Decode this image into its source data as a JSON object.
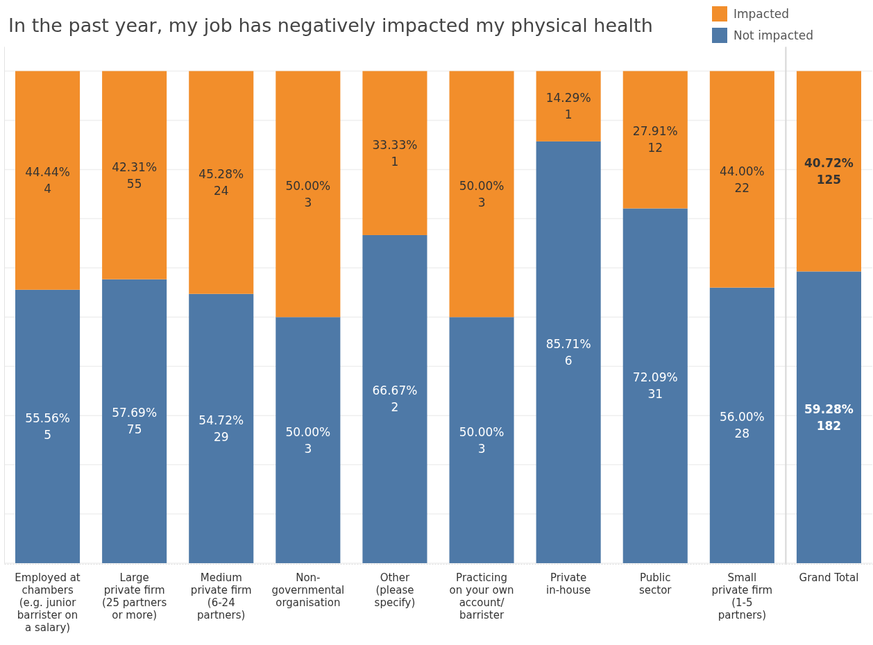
{
  "chart_data": [
    {
      "type": "bar",
      "title": "In the past year, my job has negatively impacted my physical health",
      "categories": [
        "Employed at chambers (e.g. junior barrister on a salary)",
        "Large private firm (25 partners or more)",
        "Medium private firm (6-24 partners)",
        "Non-governmental organisation",
        "Other (please specify)",
        "Practicing on your own account/barrister",
        "Private in-house",
        "Public sector",
        "Small private firm (1-5 partners)"
      ],
      "series": [
        {
          "name": "Not impacted",
          "color": "#4e79a7",
          "values": [
            55.56,
            57.69,
            54.72,
            50.0,
            66.67,
            50.0,
            85.71,
            72.09,
            56.0
          ],
          "value_labels": [
            "55.56%\n5",
            "57.69%\n75",
            "54.72%\n29",
            "50.00%\n3",
            "66.67%\n2",
            "50.00%\n3",
            "85.71%\n6",
            "72.09%\n31",
            "56.00%\n28"
          ]
        },
        {
          "name": "Impacted",
          "color": "#f28e2b",
          "values": [
            44.44,
            42.31,
            45.28,
            50.0,
            33.33,
            50.0,
            14.29,
            27.91,
            44.0
          ],
          "value_labels": [
            "44.44%\n4",
            "42.31%\n55",
            "45.28%\n24",
            "50.00%\n3",
            "33.33%\n1",
            "50.00%\n3",
            "14.29%\n1",
            "27.91%\n12",
            "44.00%\n22"
          ]
        }
      ],
      "stacked": true,
      "ylim": [
        0,
        105
      ],
      "yticks": [
        {
          "value": 0,
          "label": null
        },
        {
          "value": 10,
          "label": null
        },
        {
          "value": 20,
          "label": null
        },
        {
          "value": 30,
          "label": null
        },
        {
          "value": 40,
          "label": null
        },
        {
          "value": 50,
          "label": null
        },
        {
          "value": 60,
          "label": null
        },
        {
          "value": 70,
          "label": null
        },
        {
          "value": 80,
          "label": null
        },
        {
          "value": 90,
          "label": null
        },
        {
          "value": 100,
          "label": null
        }
      ],
      "grid": "y",
      "legend": "top right",
      "tick_labels": "x"
    },
    {
      "type": "bar",
      "categories": [
        "Grand Total"
      ],
      "series": [
        {
          "color": "#4e79a7",
          "values": [
            59.28
          ],
          "value_labels": [
            "59.28%\n182"
          ]
        },
        {
          "color": "#f28e2b",
          "values": [
            40.72
          ],
          "value_labels": [
            "40.72%\n125"
          ]
        }
      ],
      "stacked": true,
      "ylim": [
        0,
        105
      ],
      "yticks": [
        {
          "value": 0,
          "label": null
        },
        {
          "value": 10,
          "label": null
        },
        {
          "value": 20,
          "label": null
        },
        {
          "value": 30,
          "label": null
        },
        {
          "value": 40,
          "label": null
        },
        {
          "value": 50,
          "label": null
        },
        {
          "value": 60,
          "label": null
        },
        {
          "value": 70,
          "label": null
        },
        {
          "value": 80,
          "label": null
        },
        {
          "value": 90,
          "label": null
        },
        {
          "value": 100,
          "label": null
        }
      ],
      "grid": "y",
      "tick_labels": "x"
    }
  ]
}
